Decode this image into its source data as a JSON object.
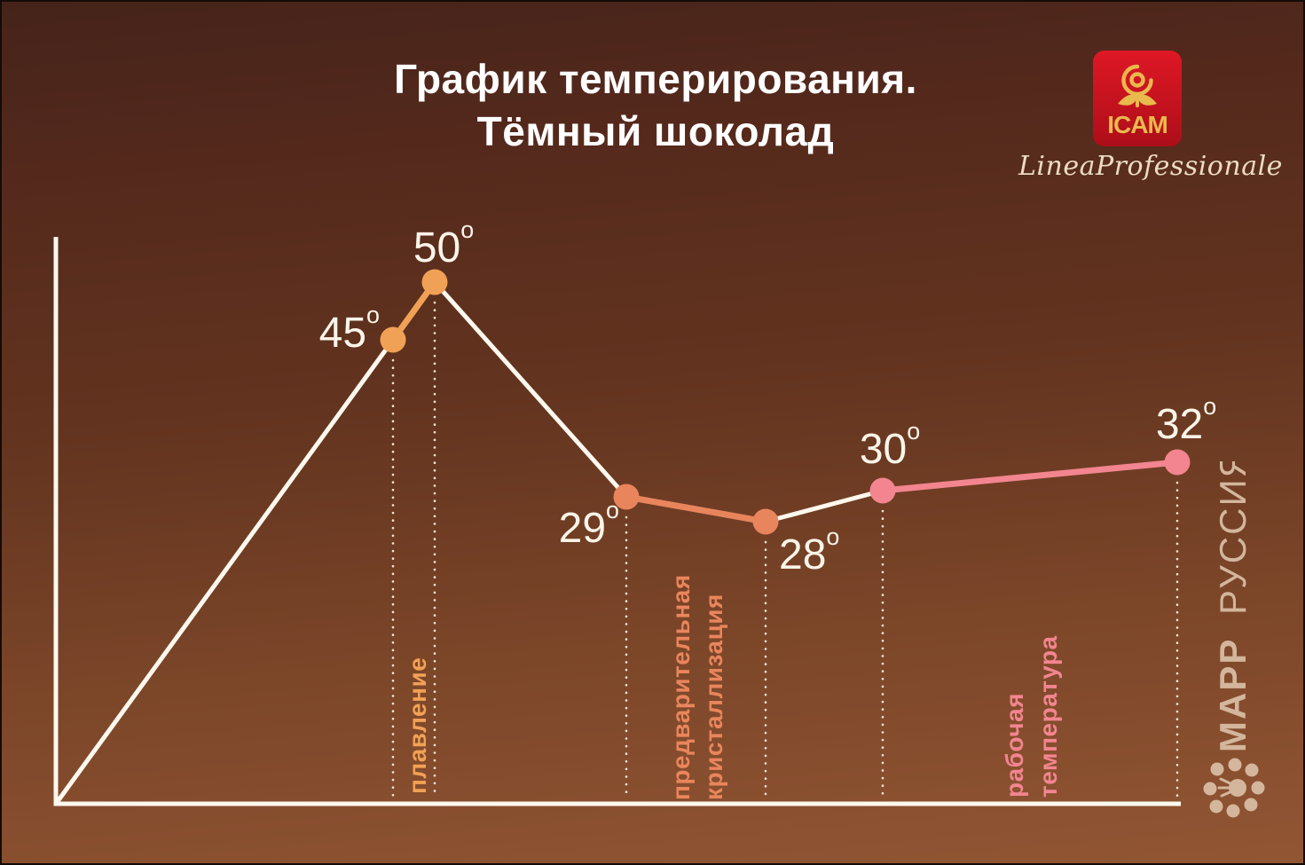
{
  "title": {
    "line1": "График темперирования.",
    "line2": "Тёмный шоколад"
  },
  "branding": {
    "icam_text": "ICAM",
    "linea_professionale": "LineaProfessionale",
    "mapp_name": "МАРР",
    "mapp_region": "РУССИЯ"
  },
  "chart_data": {
    "type": "line",
    "title": "График темперирования. Тёмный шоколад",
    "unit": "°C",
    "deg_mark": "o",
    "values": [
      45,
      50,
      29,
      28,
      30,
      32
    ],
    "points": [
      {
        "label": "45",
        "value": 45,
        "phase": 0
      },
      {
        "label": "50",
        "value": 50,
        "phase": 0
      },
      {
        "label": "29",
        "value": 29,
        "phase": 1
      },
      {
        "label": "28",
        "value": 28,
        "phase": 1
      },
      {
        "label": "30",
        "value": 30,
        "phase": 2
      },
      {
        "label": "32",
        "value": 32,
        "phase": 2
      }
    ],
    "phases": [
      {
        "name_lines": [
          "плавление"
        ],
        "color": "#f1a155",
        "temps": [
          45,
          50
        ]
      },
      {
        "name_lines": [
          "предварительная",
          "кристаллизация"
        ],
        "color": "#e9855c",
        "temps": [
          29,
          28
        ]
      },
      {
        "name_lines": [
          "рабочая",
          "температура"
        ],
        "color": "#f2858f",
        "temps": [
          30,
          32
        ]
      }
    ],
    "line_color": "#fdf8ee",
    "dotted_guide_color": "#f3e4d1",
    "axes": {
      "grid": false,
      "tick_labels": "none",
      "x_axis_visible": true,
      "y_axis_visible": true
    },
    "annotations": "пунктирные линии от каждой точки к оси X"
  },
  "colors": {
    "bg_top": "#45231a",
    "bg_bottom": "#925634",
    "title_text": "#ffffff",
    "temp_label_text": "#fcf5e9",
    "icam_red": "#d01522",
    "icam_gold": "#e9b94d",
    "cream_text": "#ecdcc3",
    "mapp_tan": "#d3b69b"
  }
}
